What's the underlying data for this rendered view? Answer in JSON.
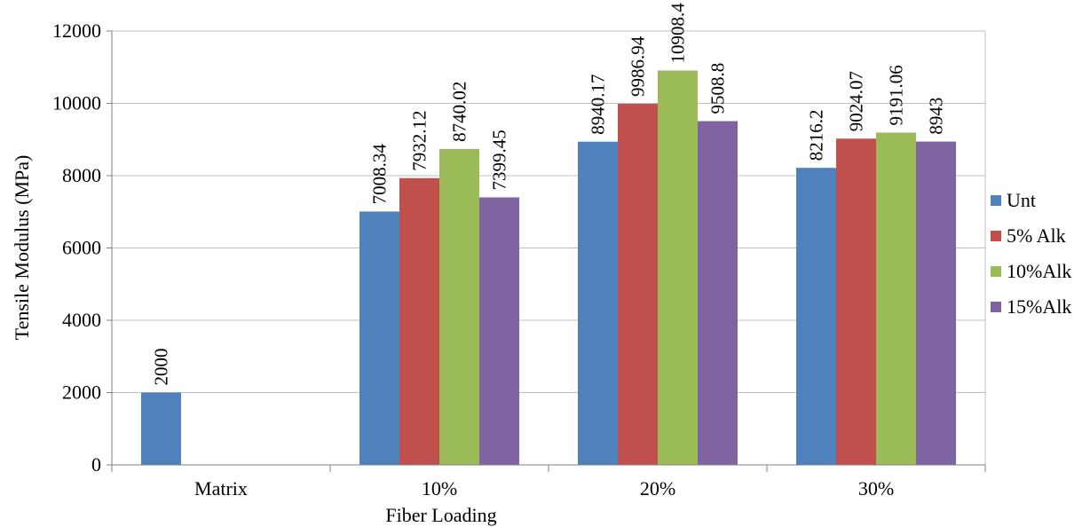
{
  "chart_data": {
    "type": "bar",
    "title": "",
    "xlabel": "Fiber Loading",
    "ylabel": "Tensile  Modulus  (MPa)",
    "ylim": [
      0,
      12000
    ],
    "yticks": [
      0,
      2000,
      4000,
      6000,
      8000,
      10000,
      12000
    ],
    "grid": true,
    "legend_position": "right",
    "categories": [
      "Matrix",
      "10%",
      "20%",
      "30%"
    ],
    "series": [
      {
        "name": "Unt",
        "color": "#4f81bd",
        "values": [
          2000,
          7008.34,
          8940.17,
          8216.2
        ],
        "labels": [
          "2000",
          "7008.34",
          "8940.17",
          "8216.2"
        ]
      },
      {
        "name": "5% Alk",
        "color": "#c0504d",
        "values": [
          null,
          7932.12,
          9986.94,
          9024.07
        ],
        "labels": [
          "",
          "7932.12",
          "9986.94",
          "9024.07"
        ]
      },
      {
        "name": "10%Alk",
        "color": "#9bbb59",
        "values": [
          null,
          8740.02,
          10908.4,
          9191.06
        ],
        "labels": [
          "",
          "8740.02",
          "10908.4",
          "9191.06"
        ]
      },
      {
        "name": "15%Alk",
        "color": "#8064a2",
        "values": [
          null,
          7399.45,
          9508.8,
          8943
        ],
        "labels": [
          "",
          "7399.45",
          "9508.8",
          "8943"
        ]
      }
    ]
  }
}
